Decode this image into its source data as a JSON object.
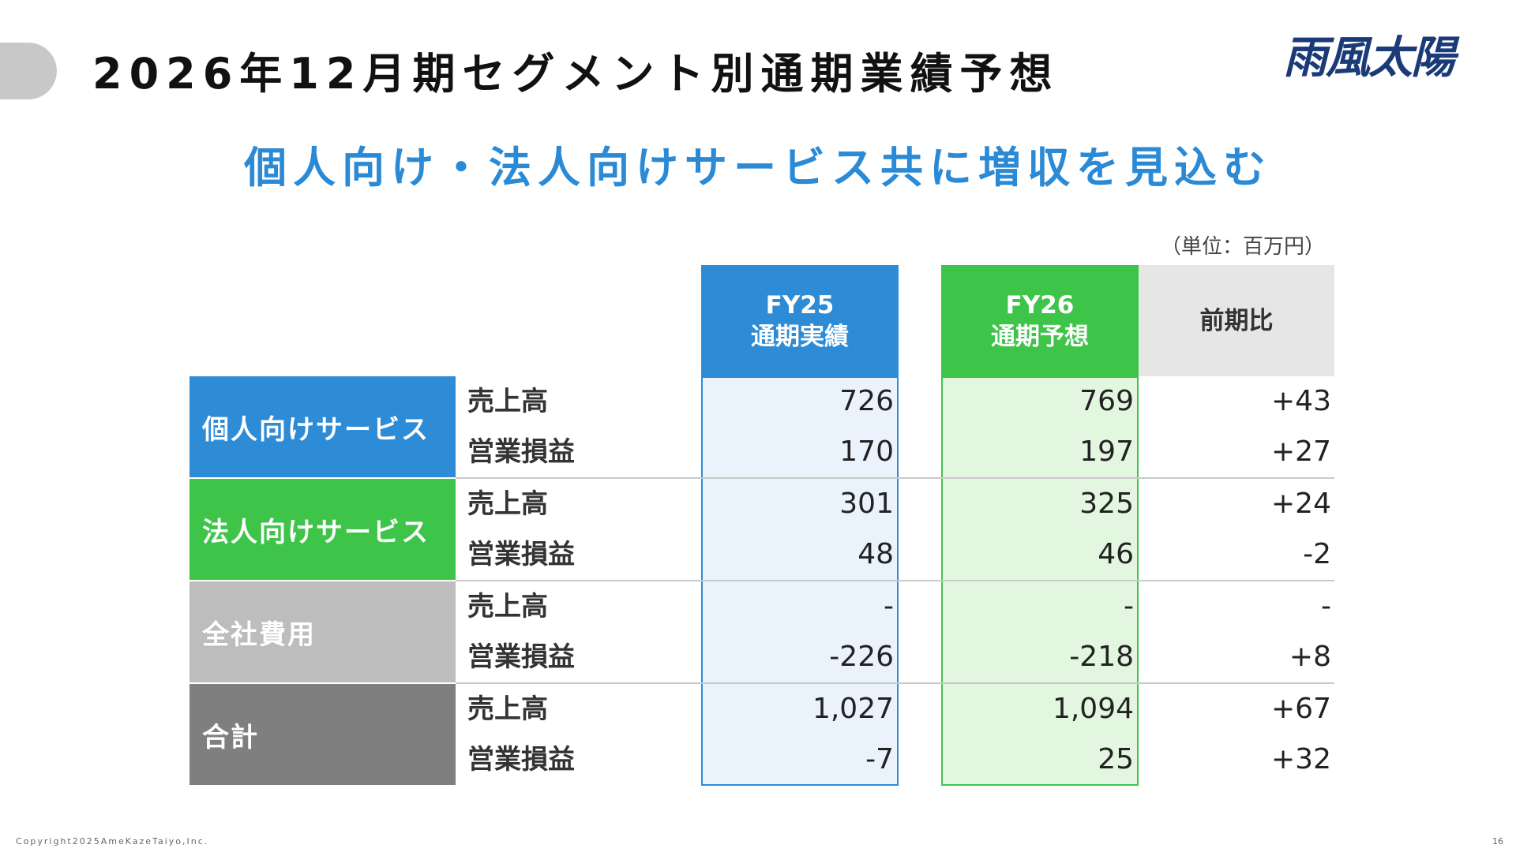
{
  "header": {
    "title": "2026年12月期セグメント別通期業績予想",
    "logo_text": "雨風太陽"
  },
  "headline": "個人向け・法人向けサービス共に増収を見込む",
  "unit_note": "（単位：百万円）",
  "columns": {
    "fy25": {
      "line1": "FY25",
      "line2": "通期実績"
    },
    "fy26": {
      "line1": "FY26",
      "line2": "通期予想"
    },
    "ratio": {
      "label": "前期比"
    }
  },
  "colors": {
    "fy25_accent": "#2e8bd6",
    "fy26_accent": "#3fc44a",
    "headline": "#2a8ad6",
    "logo": "#1b3a78"
  },
  "segments": [
    {
      "name": "個人向けサービス",
      "color": "#2e8bd6",
      "rows": [
        {
          "metric": "売上高",
          "fy25": "726",
          "fy26": "769",
          "ratio": "+43"
        },
        {
          "metric": "営業損益",
          "fy25": "170",
          "fy26": "197",
          "ratio": "+27"
        }
      ]
    },
    {
      "name": "法人向けサービス",
      "color": "#3fc44a",
      "rows": [
        {
          "metric": "売上高",
          "fy25": "301",
          "fy26": "325",
          "ratio": "+24"
        },
        {
          "metric": "営業損益",
          "fy25": "48",
          "fy26": "46",
          "ratio": "-2"
        }
      ]
    },
    {
      "name": "全社費用",
      "color": "#bdbdbd",
      "rows": [
        {
          "metric": "売上高",
          "fy25": "-",
          "fy26": "-",
          "ratio": "-"
        },
        {
          "metric": "営業損益",
          "fy25": "-226",
          "fy26": "-218",
          "ratio": "+8"
        }
      ]
    },
    {
      "name": "合計",
      "color": "#7f7f7f",
      "rows": [
        {
          "metric": "売上高",
          "fy25": "1,027",
          "fy26": "1,094",
          "ratio": "+67"
        },
        {
          "metric": "営業損益",
          "fy25": "-7",
          "fy26": "25",
          "ratio": "+32"
        }
      ]
    }
  ],
  "footer": {
    "copyright": "Copyright2025AmeKazeTaiyo,Inc.",
    "page_number": "16"
  }
}
